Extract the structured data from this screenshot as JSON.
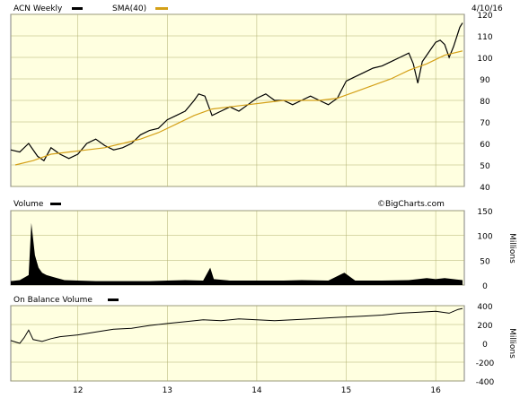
{
  "chart_data": [
    {
      "type": "line",
      "title": "ACN Weekly",
      "legend": [
        {
          "label": "ACN Weekly",
          "color": "#000000"
        },
        {
          "label": "SMA(40)",
          "color": "#d4a017"
        }
      ],
      "date_label": "4/10/16",
      "watermark": "",
      "ylim": [
        40,
        120
      ],
      "yticks": [
        "40",
        "50",
        "60",
        "70",
        "80",
        "90",
        "100",
        "110",
        "120"
      ],
      "x_year_labels": [
        "12",
        "13",
        "14",
        "15",
        "16"
      ],
      "price_points": [
        [
          2011.25,
          57
        ],
        [
          2011.35,
          56
        ],
        [
          2011.45,
          60
        ],
        [
          2011.55,
          54
        ],
        [
          2011.62,
          52
        ],
        [
          2011.7,
          58
        ],
        [
          2011.8,
          55
        ],
        [
          2011.9,
          53
        ],
        [
          2012.0,
          55
        ],
        [
          2012.1,
          60
        ],
        [
          2012.2,
          62
        ],
        [
          2012.3,
          59
        ],
        [
          2012.4,
          57
        ],
        [
          2012.5,
          58
        ],
        [
          2012.6,
          60
        ],
        [
          2012.7,
          64
        ],
        [
          2012.8,
          66
        ],
        [
          2012.9,
          67
        ],
        [
          2013.0,
          71
        ],
        [
          2013.1,
          73
        ],
        [
          2013.2,
          75
        ],
        [
          2013.3,
          80
        ],
        [
          2013.35,
          83
        ],
        [
          2013.42,
          82
        ],
        [
          2013.5,
          73
        ],
        [
          2013.6,
          75
        ],
        [
          2013.7,
          77
        ],
        [
          2013.8,
          75
        ],
        [
          2013.9,
          78
        ],
        [
          2014.0,
          81
        ],
        [
          2014.1,
          83
        ],
        [
          2014.2,
          80
        ],
        [
          2014.3,
          80
        ],
        [
          2014.4,
          78
        ],
        [
          2014.5,
          80
        ],
        [
          2014.6,
          82
        ],
        [
          2014.7,
          80
        ],
        [
          2014.8,
          78
        ],
        [
          2014.9,
          81
        ],
        [
          2015.0,
          89
        ],
        [
          2015.1,
          91
        ],
        [
          2015.2,
          93
        ],
        [
          2015.3,
          95
        ],
        [
          2015.4,
          96
        ],
        [
          2015.5,
          98
        ],
        [
          2015.6,
          100
        ],
        [
          2015.7,
          102
        ],
        [
          2015.75,
          97
        ],
        [
          2015.8,
          88
        ],
        [
          2015.85,
          98
        ],
        [
          2015.95,
          104
        ],
        [
          2016.0,
          107
        ],
        [
          2016.05,
          108
        ],
        [
          2016.1,
          106
        ],
        [
          2016.15,
          100
        ],
        [
          2016.2,
          105
        ],
        [
          2016.27,
          114
        ],
        [
          2016.3,
          116
        ]
      ],
      "sma_points": [
        [
          2011.3,
          50
        ],
        [
          2011.5,
          52
        ],
        [
          2011.7,
          55
        ],
        [
          2011.9,
          56
        ],
        [
          2012.1,
          57
        ],
        [
          2012.3,
          58
        ],
        [
          2012.5,
          60
        ],
        [
          2012.7,
          62
        ],
        [
          2012.9,
          65
        ],
        [
          2013.1,
          69
        ],
        [
          2013.3,
          73
        ],
        [
          2013.5,
          76
        ],
        [
          2013.7,
          77
        ],
        [
          2013.9,
          78
        ],
        [
          2014.1,
          79
        ],
        [
          2014.3,
          80
        ],
        [
          2014.5,
          80
        ],
        [
          2014.7,
          80
        ],
        [
          2014.9,
          81
        ],
        [
          2015.1,
          84
        ],
        [
          2015.3,
          87
        ],
        [
          2015.5,
          90
        ],
        [
          2015.7,
          94
        ],
        [
          2015.9,
          97
        ],
        [
          2016.1,
          101
        ],
        [
          2016.3,
          103
        ]
      ]
    },
    {
      "type": "bar",
      "title": "Volume",
      "ylim": [
        0,
        150
      ],
      "yticks": [
        "0",
        "50",
        "100",
        "150"
      ],
      "ylabel": "Millions",
      "watermark": "©BigCharts.com",
      "volume_points": [
        [
          2011.25,
          8
        ],
        [
          2011.35,
          10
        ],
        [
          2011.45,
          20
        ],
        [
          2011.48,
          125
        ],
        [
          2011.52,
          60
        ],
        [
          2011.56,
          35
        ],
        [
          2011.6,
          25
        ],
        [
          2011.65,
          20
        ],
        [
          2011.75,
          15
        ],
        [
          2011.85,
          10
        ],
        [
          2012.0,
          9
        ],
        [
          2012.2,
          8
        ],
        [
          2012.4,
          8
        ],
        [
          2012.6,
          8
        ],
        [
          2012.8,
          8
        ],
        [
          2013.0,
          9
        ],
        [
          2013.2,
          10
        ],
        [
          2013.4,
          9
        ],
        [
          2013.48,
          35
        ],
        [
          2013.52,
          12
        ],
        [
          2013.7,
          9
        ],
        [
          2014.0,
          9
        ],
        [
          2014.3,
          9
        ],
        [
          2014.5,
          10
        ],
        [
          2014.8,
          9
        ],
        [
          2014.98,
          25
        ],
        [
          2015.1,
          9
        ],
        [
          2015.4,
          9
        ],
        [
          2015.7,
          10
        ],
        [
          2015.9,
          14
        ],
        [
          2016.0,
          12
        ],
        [
          2016.1,
          14
        ],
        [
          2016.2,
          12
        ],
        [
          2016.3,
          10
        ]
      ]
    },
    {
      "type": "line",
      "title": "On Balance Volume",
      "ylim": [
        -400,
        400
      ],
      "yticks": [
        "-400",
        "-200",
        "0",
        "200",
        "400"
      ],
      "ylabel": "Millions",
      "obv_points": [
        [
          2011.25,
          30
        ],
        [
          2011.35,
          0
        ],
        [
          2011.4,
          60
        ],
        [
          2011.45,
          140
        ],
        [
          2011.5,
          40
        ],
        [
          2011.6,
          20
        ],
        [
          2011.7,
          50
        ],
        [
          2011.8,
          70
        ],
        [
          2012.0,
          90
        ],
        [
          2012.2,
          120
        ],
        [
          2012.4,
          150
        ],
        [
          2012.6,
          160
        ],
        [
          2012.8,
          190
        ],
        [
          2013.0,
          210
        ],
        [
          2013.2,
          230
        ],
        [
          2013.4,
          250
        ],
        [
          2013.6,
          240
        ],
        [
          2013.8,
          260
        ],
        [
          2014.0,
          250
        ],
        [
          2014.2,
          240
        ],
        [
          2014.4,
          250
        ],
        [
          2014.6,
          260
        ],
        [
          2014.8,
          270
        ],
        [
          2015.0,
          280
        ],
        [
          2015.2,
          290
        ],
        [
          2015.4,
          300
        ],
        [
          2015.6,
          320
        ],
        [
          2015.8,
          330
        ],
        [
          2016.0,
          340
        ],
        [
          2016.15,
          320
        ],
        [
          2016.25,
          360
        ],
        [
          2016.3,
          370
        ]
      ]
    }
  ]
}
